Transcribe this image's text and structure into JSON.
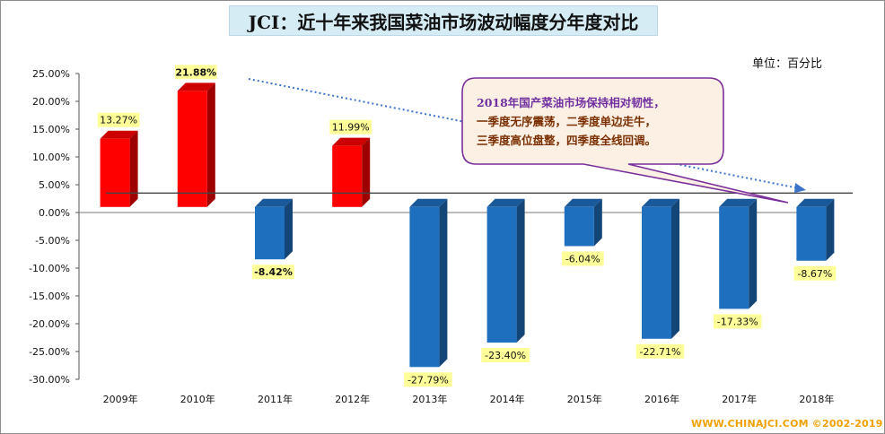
{
  "title": "JCI：近十年来我国菜油市场波动幅度分年度对比",
  "unit_label": "单位：百分比",
  "footer": "WWW.CHINAJCI.COM ©2002-2019",
  "callout": {
    "line1": "2018年国产菜油市场保持相对韧性，",
    "line2": "一季度无序震荡，二季度单边走牛，",
    "line3": "三季度高位盘整，四季度全线回调。"
  },
  "colors": {
    "positive": "#ff0000",
    "negative": "#1f6fbf",
    "label_bg": "#ffff99",
    "trend_arrow": "#3b74c9"
  },
  "chart_data": {
    "type": "bar",
    "title": "JCI：近十年来我国菜油市场波动幅度分年度对比",
    "xlabel": "",
    "ylabel": "单位：百分比",
    "categories": [
      "2009年",
      "2010年",
      "2011年",
      "2012年",
      "2013年",
      "2014年",
      "2015年",
      "2016年",
      "2017年",
      "2018年"
    ],
    "values": [
      13.27,
      21.88,
      -8.42,
      11.99,
      -27.79,
      -23.4,
      -6.04,
      -22.71,
      -17.33,
      -8.67
    ],
    "value_labels": [
      "13.27%",
      "21.88%",
      "-8.42%",
      "11.99%",
      "-27.79%",
      "-23.40%",
      "-6.04%",
      "-22.71%",
      "-17.33%",
      "-8.67%"
    ],
    "ylim": [
      -30,
      25
    ],
    "yticks": [
      25,
      20,
      15,
      10,
      5,
      0,
      -5,
      -10,
      -15,
      -20,
      -25,
      -30
    ],
    "ytick_labels": [
      "25.00%",
      "20.00%",
      "15.00%",
      "10.00%",
      "5.00%",
      "0.00%",
      "-5.00%",
      "-10.00%",
      "-15.00%",
      "-20.00%",
      "-25.00%",
      "-30.00%"
    ],
    "grid": false,
    "reference_line": 3.5,
    "annotations": [
      "dotted trend arrow from 2010 peak toward 2018"
    ]
  }
}
